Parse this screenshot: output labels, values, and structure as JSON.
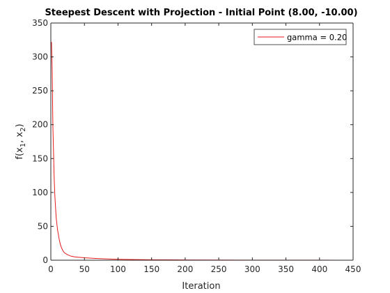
{
  "chart_data": {
    "type": "line",
    "title": "Steepest Descent with Projection - Initial Point (8.00, -10.00)",
    "xlabel": "Iteration",
    "ylabel": {
      "base": "f(x",
      "sub1": "1",
      "mid": ", x",
      "sub2": "2",
      "end": ")"
    },
    "xlim": [
      0,
      450
    ],
    "ylim": [
      0,
      350
    ],
    "xticks": [
      0,
      50,
      100,
      150,
      200,
      250,
      300,
      350,
      400,
      450
    ],
    "yticks": [
      0,
      50,
      100,
      150,
      200,
      250,
      300,
      350
    ],
    "grid": false,
    "legend_position": "top-right",
    "series": [
      {
        "name": "gamma = 0.20",
        "color": "#e41a1c",
        "x": [
          1,
          2,
          3,
          4,
          5,
          6,
          7,
          8,
          10,
          12,
          14,
          16,
          18,
          20,
          25,
          30,
          35,
          40,
          50,
          60,
          70,
          80,
          90,
          100,
          120,
          150,
          200,
          250,
          300,
          350,
          400,
          432
        ],
        "y": [
          322,
          280,
          200,
          160,
          120,
          95,
          78,
          62,
          45,
          33,
          24,
          18,
          14,
          11,
          8,
          6,
          5,
          4.5,
          3.6,
          3,
          2.5,
          2.1,
          1.7,
          1.4,
          1,
          0.7,
          0.4,
          0.25,
          0.15,
          0.1,
          0.07,
          0.05
        ]
      }
    ]
  }
}
